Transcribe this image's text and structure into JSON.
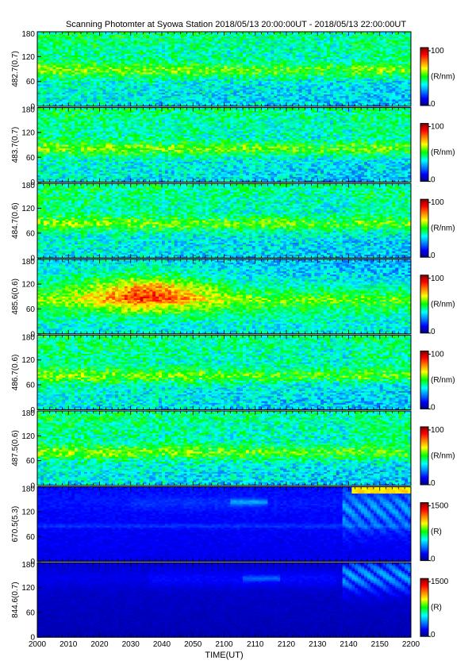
{
  "title": "Scanning Photomter at Syowa Station  2018/05/13 20:00:00UT - 2018/05/13 22:00:00UT",
  "chart_data": {
    "type": "heatmap",
    "title": "Scanning Photomter at Syowa Station  2018/05/13 20:00:00UT - 2018/05/13 22:00:00UT",
    "xlabel": "TIME(UT)",
    "x_ticks": [
      "2000",
      "2010",
      "2020",
      "2030",
      "2040",
      "2050",
      "2100",
      "2110",
      "2120",
      "2130",
      "2140",
      "2150",
      "2200"
    ],
    "x_range": [
      "20:00",
      "22:00"
    ],
    "y_ticks": [
      "0",
      "60",
      "120",
      "180"
    ],
    "ylim": [
      0,
      180
    ],
    "colormap": [
      "#00007f",
      "#0000ff",
      "#00ffff",
      "#00ff00",
      "#ffff00",
      "#ff0000",
      "#7f0000"
    ],
    "panels": [
      {
        "ylabel": "482.7(0.7)",
        "unit": "(R/nm)",
        "cmin": "0",
        "cmax": "100",
        "style": "uniform",
        "band": 87
      },
      {
        "ylabel": "483.7(0.7)",
        "unit": "(R/nm)",
        "cmin": "0",
        "cmax": "100",
        "style": "uniform",
        "band": 80
      },
      {
        "ylabel": "484.7(0.6)",
        "unit": "(R/nm)",
        "cmin": "0",
        "cmax": "100",
        "style": "uniform",
        "band": 82
      },
      {
        "ylabel": "485.6(0.6)",
        "unit": "(R/nm)",
        "cmin": "0",
        "cmax": "100",
        "style": "hbeta",
        "band": 82
      },
      {
        "ylabel": "486.7(0.6)",
        "unit": "(R/nm)",
        "cmin": "0",
        "cmax": "100",
        "style": "uniform",
        "band": 82
      },
      {
        "ylabel": "487.5(0.6)",
        "unit": "(R/nm)",
        "cmin": "0",
        "cmax": "100",
        "style": "uniform",
        "band": 80
      },
      {
        "ylabel": "670.5(5.3)",
        "unit": "(R)",
        "cmin": "0",
        "cmax": "1500",
        "style": "aurora",
        "band": 85
      },
      {
        "ylabel": "844.6(0.7)",
        "unit": "(R)",
        "cmin": "0",
        "cmax": "1500",
        "style": "aurora2",
        "band": 0
      }
    ]
  }
}
